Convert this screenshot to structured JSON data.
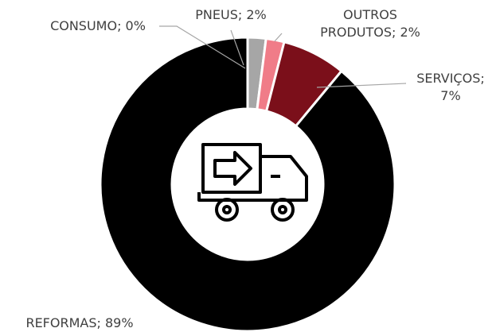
{
  "chart_data": {
    "type": "pie",
    "value_labels": [
      "CONSUMO; 0%",
      "PNEUS; 2%",
      "OUTROS PRODUTOS; 2%",
      "SERVIÇOS; 7%",
      "REFORMAS; 89%"
    ],
    "values": [
      0,
      2,
      2,
      7,
      89
    ],
    "colors": [
      "#bfbfbf",
      "#a6a6a6",
      "#f07c88",
      "#7b0f1a",
      "#000000"
    ],
    "donut": true
  }
}
